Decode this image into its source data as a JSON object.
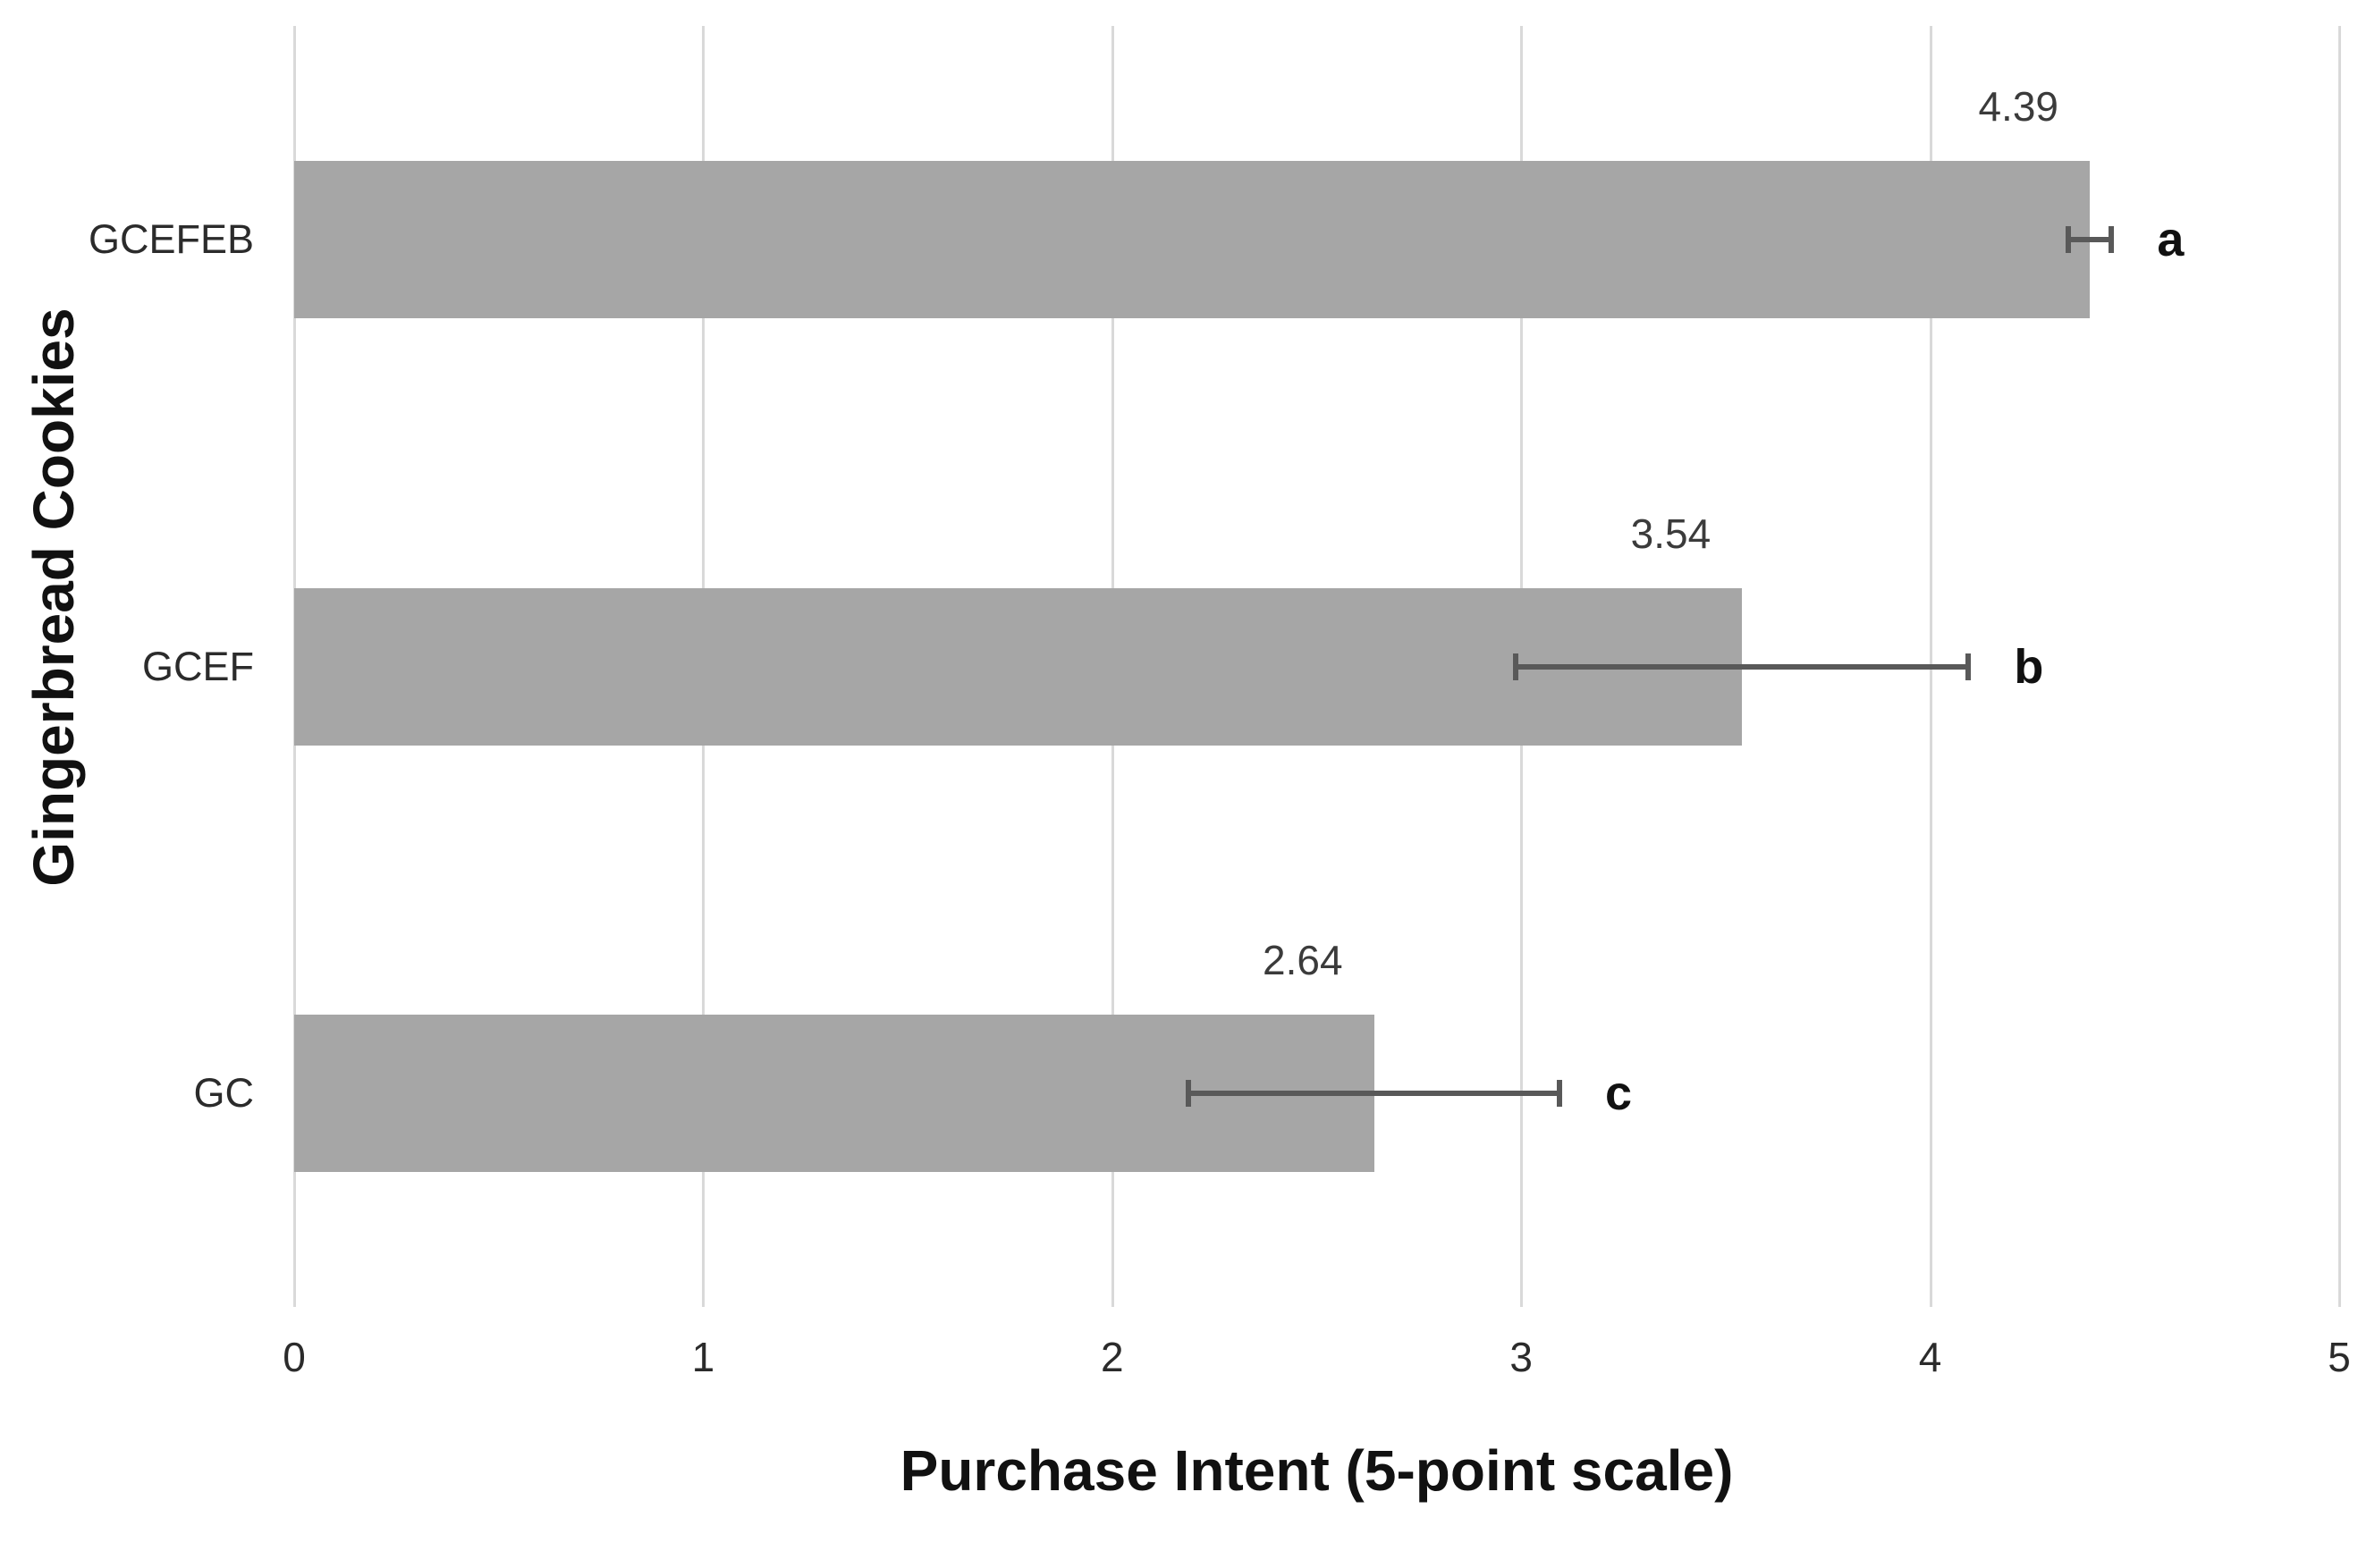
{
  "chart_data": {
    "type": "bar",
    "orientation": "horizontal",
    "xlabel": "Purchase Intent (5-point scale)",
    "ylabel": "Gingerbread Cookies",
    "categories": [
      "GCEFEB",
      "GCEF",
      "GC"
    ],
    "values": [
      4.39,
      3.54,
      2.64
    ],
    "value_labels": [
      "4.39",
      "3.54",
      "2.64"
    ],
    "sig_letters": [
      "a",
      "b",
      "c"
    ],
    "error_bars": [
      {
        "low": 4.33,
        "high": 4.45
      },
      {
        "low": 2.98,
        "high": 4.1
      },
      {
        "low": 2.18,
        "high": 3.1
      }
    ],
    "xlim": [
      0,
      5
    ],
    "x_ticks": [
      "0",
      "1",
      "2",
      "3",
      "4",
      "5"
    ],
    "grid": "vertical",
    "legend": "none",
    "colors": {
      "bar_fill": "#a6a6a6",
      "error_bar": "#595959",
      "gridline": "#d9d9d9",
      "label_text": "#3b3b3b",
      "title_text": "#111111",
      "background": "#ffffff"
    }
  }
}
